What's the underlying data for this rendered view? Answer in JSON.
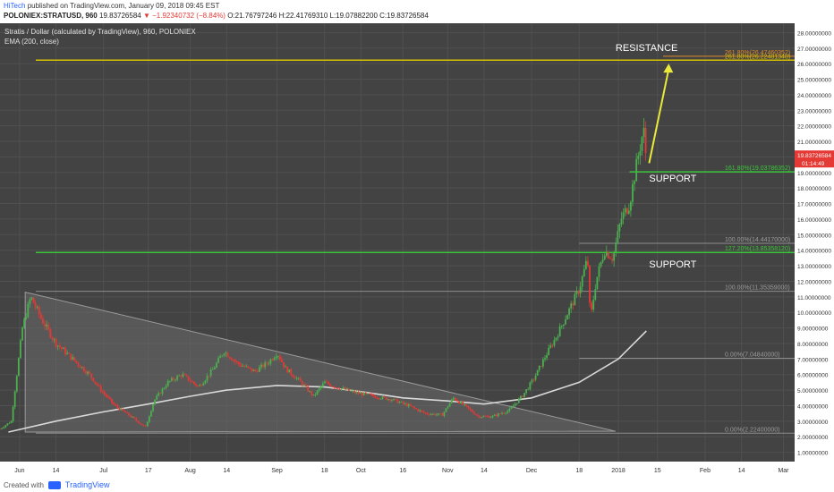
{
  "header": {
    "author": "HiTech",
    "published": "published on TradingView.com, January 09, 2018 09:45 EST",
    "symbol": "POLONIEX:STRATUSD, 960",
    "last": "19.83726584",
    "change": "−1.92340732 (−8.84%)",
    "ohlc": "O:21.76797246 H:22.41769310 L:19.07882200 C:19.83726584"
  },
  "legend": {
    "title": "Stratis / Dollar (calculated by TradingView), 960, POLONIEX",
    "ema": "EMA (200, close)"
  },
  "footer": {
    "created": "Created with",
    "brand": "TradingView"
  },
  "colors": {
    "background": "#434343",
    "grid": "#505050",
    "up": "#4caf50",
    "down": "#e53935",
    "ema": "#d9d9d9",
    "resistance": "#d4c000",
    "support": "#39c639",
    "arrow": "#eaea3a",
    "fib_orange": "#e08a2c",
    "fib_gray": "#8c8c8c",
    "price_tag": "#e53935"
  },
  "chart_data": {
    "type": "candlestick",
    "y_axis": {
      "range": [
        0.4,
        28.6
      ],
      "tick_values": [
        1,
        2,
        3,
        4,
        5,
        6,
        7,
        8,
        9,
        10,
        11,
        12,
        13,
        14,
        15,
        16,
        17,
        18,
        19,
        20,
        21,
        22,
        23,
        24,
        25,
        26,
        27,
        28
      ],
      "tick_labels": [
        "1.00000000",
        "2.00000000",
        "3.00000000",
        "4.00000000",
        "5.00000000",
        "6.00000000",
        "7.00000000",
        "8.00000000",
        "9.00000000",
        "10.00000000",
        "11.00000000",
        "12.00000000",
        "13.00000000",
        "14.00000000",
        "15.00000000",
        "16.00000000",
        "17.00000000",
        "18.00000000",
        "19.00000000",
        "20.00000000",
        "21.00000000",
        "22.00000000",
        "23.00000000",
        "24.00000000",
        "25.00000000",
        "26.00000000",
        "27.00000000",
        "28.00000000"
      ]
    },
    "x_axis": {
      "range": [
        "2017-05-25",
        "2018-03-05"
      ],
      "ticks": [
        {
          "date": "2017-06-01",
          "label": "Jun"
        },
        {
          "date": "2017-06-14",
          "label": "14"
        },
        {
          "date": "2017-07-01",
          "label": "Jul"
        },
        {
          "date": "2017-07-17",
          "label": "17"
        },
        {
          "date": "2017-08-01",
          "label": "Aug"
        },
        {
          "date": "2017-08-14",
          "label": "14"
        },
        {
          "date": "2017-09-01",
          "label": "Sep"
        },
        {
          "date": "2017-09-18",
          "label": "18"
        },
        {
          "date": "2017-10-01",
          "label": "Oct"
        },
        {
          "date": "2017-10-16",
          "label": "16"
        },
        {
          "date": "2017-11-01",
          "label": "Nov"
        },
        {
          "date": "2017-11-14",
          "label": "14"
        },
        {
          "date": "2017-12-01",
          "label": "Dec"
        },
        {
          "date": "2017-12-18",
          "label": "18"
        },
        {
          "date": "2018-01-01",
          "label": "2018"
        },
        {
          "date": "2018-01-15",
          "label": "15"
        },
        {
          "date": "2018-02-01",
          "label": "Feb"
        },
        {
          "date": "2018-02-14",
          "label": "14"
        },
        {
          "date": "2018-03-01",
          "label": "Mar"
        }
      ]
    },
    "grid": true,
    "price_path": [
      [
        "2017-05-25",
        2.5
      ],
      [
        "2017-05-29",
        3.0
      ],
      [
        "2017-06-02",
        9.0
      ],
      [
        "2017-06-05",
        11.0
      ],
      [
        "2017-06-09",
        9.5
      ],
      [
        "2017-06-14",
        8.0
      ],
      [
        "2017-06-20",
        7.0
      ],
      [
        "2017-06-26",
        6.0
      ],
      [
        "2017-06-30",
        5.0
      ],
      [
        "2017-07-05",
        4.0
      ],
      [
        "2017-07-10",
        3.4
      ],
      [
        "2017-07-16",
        2.6
      ],
      [
        "2017-07-19",
        4.3
      ],
      [
        "2017-07-24",
        5.5
      ],
      [
        "2017-07-29",
        6.0
      ],
      [
        "2017-08-04",
        5.2
      ],
      [
        "2017-08-09",
        6.3
      ],
      [
        "2017-08-13",
        7.5
      ],
      [
        "2017-08-18",
        6.7
      ],
      [
        "2017-08-24",
        6.2
      ],
      [
        "2017-08-29",
        6.8
      ],
      [
        "2017-09-01",
        7.4
      ],
      [
        "2017-09-04",
        6.4
      ],
      [
        "2017-09-09",
        5.6
      ],
      [
        "2017-09-14",
        4.6
      ],
      [
        "2017-09-18",
        5.5
      ],
      [
        "2017-09-22",
        5.2
      ],
      [
        "2017-09-30",
        4.8
      ],
      [
        "2017-10-06",
        4.6
      ],
      [
        "2017-10-12",
        4.4
      ],
      [
        "2017-10-18",
        4.0
      ],
      [
        "2017-10-24",
        3.5
      ],
      [
        "2017-10-30",
        3.4
      ],
      [
        "2017-11-03",
        4.5
      ],
      [
        "2017-11-07",
        4.0
      ],
      [
        "2017-11-12",
        3.3
      ],
      [
        "2017-11-17",
        3.3
      ],
      [
        "2017-11-23",
        3.7
      ],
      [
        "2017-11-28",
        4.7
      ],
      [
        "2017-12-02",
        5.8
      ],
      [
        "2017-12-06",
        7.2
      ],
      [
        "2017-12-10",
        8.5
      ],
      [
        "2017-12-14",
        10.0
      ],
      [
        "2017-12-18",
        11.5
      ],
      [
        "2017-12-21",
        13.5
      ],
      [
        "2017-12-22",
        9.5
      ],
      [
        "2017-12-24",
        12.0
      ],
      [
        "2017-12-27",
        14.0
      ],
      [
        "2017-12-30",
        13.5
      ],
      [
        "2018-01-02",
        16.0
      ],
      [
        "2018-01-05",
        17.0
      ],
      [
        "2018-01-08",
        20.0
      ],
      [
        "2018-01-10",
        21.8
      ],
      [
        "2018-01-11",
        19.84
      ]
    ],
    "ema200": [
      [
        "2017-05-28",
        2.3
      ],
      [
        "2017-06-14",
        3.0
      ],
      [
        "2017-07-01",
        3.6
      ],
      [
        "2017-07-17",
        4.1
      ],
      [
        "2017-08-01",
        4.6
      ],
      [
        "2017-08-14",
        5.0
      ],
      [
        "2017-09-01",
        5.3
      ],
      [
        "2017-09-18",
        5.2
      ],
      [
        "2017-10-01",
        4.9
      ],
      [
        "2017-10-16",
        4.5
      ],
      [
        "2017-11-01",
        4.3
      ],
      [
        "2017-11-14",
        4.1
      ],
      [
        "2017-12-01",
        4.5
      ],
      [
        "2017-12-18",
        5.5
      ],
      [
        "2018-01-01",
        7.0
      ],
      [
        "2018-01-11",
        8.8
      ]
    ],
    "triangle": {
      "start": "2017-06-03",
      "end": "2017-12-31",
      "top": 11.3,
      "bottom": 2.3,
      "end_top": 2.35
    },
    "annotations": {
      "resistance_label": "RESISTANCE",
      "support_label_1": "SUPPORT",
      "support_label_2": "SUPPORT",
      "resistance_line": 26.22481348,
      "support_line_1": 19.03786352,
      "support_line_2": 13.8535812,
      "fib_levels": [
        {
          "value": 26.47460352,
          "label": "261.80%(26.47460352)",
          "style": "orange"
        },
        {
          "value": 26.22481348,
          "label": "261.80%(26.22481348)",
          "style": "yellow"
        },
        {
          "value": 19.03786352,
          "label": "161.80%(19.03786352)",
          "style": "green"
        },
        {
          "value": 14.4417,
          "label": "100.00%(14.44170000)",
          "style": "gray"
        },
        {
          "value": 13.8535812,
          "label": "127.20%(13.85358120)",
          "style": "green"
        },
        {
          "value": 11.35359,
          "label": "100.00%(11.35359000)",
          "style": "gray"
        },
        {
          "value": 7.0484,
          "label": "0.00%(7.04840000)",
          "style": "gray"
        },
        {
          "value": 2.224,
          "label": "0.00%(2.22400000)",
          "style": "gray"
        }
      ],
      "arrow": {
        "from": [
          "2018-01-12",
          19.6
        ],
        "to": [
          "2018-01-19",
          26.0
        ]
      },
      "price_tag": "19.83726584",
      "countdown": "01:14:49"
    }
  }
}
